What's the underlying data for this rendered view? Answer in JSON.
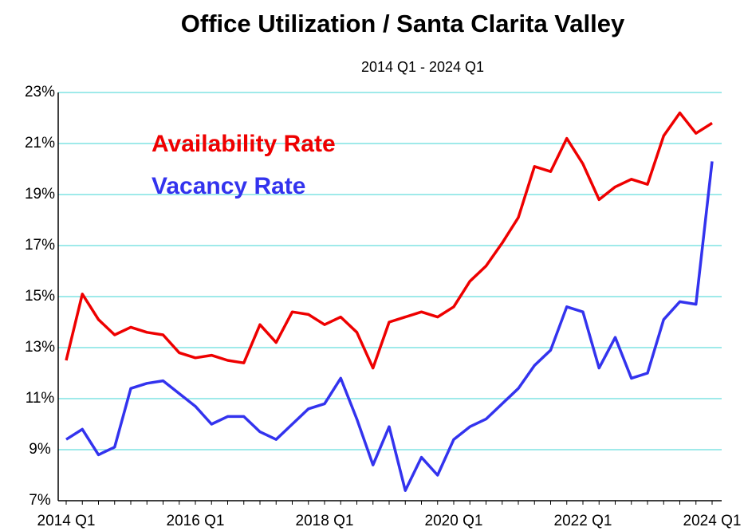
{
  "chart_data": {
    "type": "line",
    "title": "Office Utilization / Santa Clarita Valley",
    "subtitle": "2014 Q1 - 2024 Q1",
    "categories": [
      "2014 Q1",
      null,
      null,
      null,
      null,
      null,
      null,
      null,
      "2016 Q1",
      null,
      null,
      null,
      null,
      null,
      null,
      null,
      "2018 Q1",
      null,
      null,
      null,
      null,
      null,
      null,
      null,
      "2020 Q1",
      null,
      null,
      null,
      null,
      null,
      null,
      null,
      "2022 Q1",
      null,
      null,
      null,
      null,
      null,
      null,
      null,
      "2024 Q1"
    ],
    "series": [
      {
        "name": "Availability Rate",
        "color": "#ee0000",
        "values": [
          12.5,
          15.1,
          14.1,
          13.5,
          13.8,
          13.6,
          13.5,
          12.8,
          12.6,
          12.7,
          12.5,
          12.4,
          13.9,
          13.2,
          14.4,
          14.3,
          13.9,
          14.2,
          13.6,
          12.2,
          14.0,
          14.2,
          14.4,
          14.2,
          14.6,
          15.6,
          16.2,
          17.1,
          18.1,
          20.1,
          19.9,
          21.2,
          20.2,
          18.8,
          19.3,
          19.6,
          19.4,
          21.3,
          22.2,
          21.4,
          21.8
        ]
      },
      {
        "name": "Vacancy Rate",
        "color": "#3333ee",
        "values": [
          9.4,
          9.8,
          8.8,
          9.1,
          11.4,
          11.6,
          11.7,
          11.2,
          10.7,
          10.0,
          10.3,
          10.3,
          9.7,
          9.4,
          10.0,
          10.6,
          10.8,
          11.8,
          10.2,
          8.4,
          9.9,
          7.4,
          8.7,
          8.0,
          9.4,
          9.9,
          10.2,
          10.8,
          11.4,
          12.3,
          12.9,
          14.6,
          14.4,
          12.2,
          13.4,
          11.8,
          12.0,
          14.1,
          14.8,
          14.7,
          20.3
        ]
      }
    ],
    "ylim": [
      7,
      23
    ],
    "yticks": [
      {
        "value": 7,
        "label": "7%"
      },
      {
        "value": 9,
        "label": "9%"
      },
      {
        "value": 11,
        "label": "11%"
      },
      {
        "value": 13,
        "label": "13%"
      },
      {
        "value": 15,
        "label": "15%"
      },
      {
        "value": 17,
        "label": "17%"
      },
      {
        "value": 19,
        "label": "19%"
      },
      {
        "value": 21,
        "label": "21%"
      },
      {
        "value": 23,
        "label": "23%"
      }
    ],
    "grid": true,
    "grid_color": "#66dddd"
  }
}
